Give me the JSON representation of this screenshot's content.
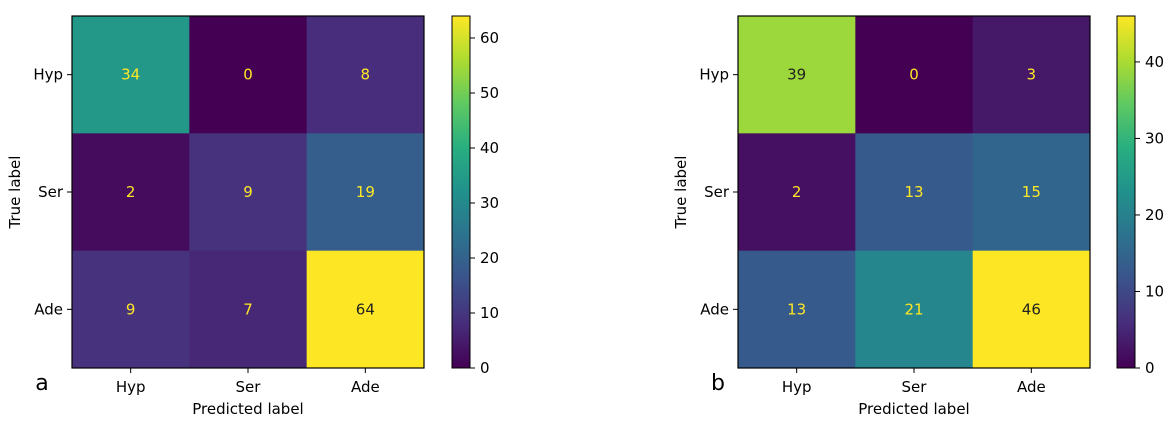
{
  "chart_data": [
    {
      "type": "heatmap",
      "panel_label": "a",
      "xlabel": "Predicted label",
      "ylabel": "True label",
      "x_categories": [
        "Hyp",
        "Ser",
        "Ade"
      ],
      "y_categories": [
        "Hyp",
        "Ser",
        "Ade"
      ],
      "values": [
        [
          34,
          0,
          8
        ],
        [
          2,
          9,
          19
        ],
        [
          9,
          7,
          64
        ]
      ],
      "colorbar": {
        "min": 0,
        "max": 64,
        "ticks": [
          0,
          10,
          20,
          30,
          40,
          50,
          60
        ]
      },
      "colormap": "viridis"
    },
    {
      "type": "heatmap",
      "panel_label": "b",
      "xlabel": "Predicted label",
      "ylabel": "True label",
      "x_categories": [
        "Hyp",
        "Ser",
        "Ade"
      ],
      "y_categories": [
        "Hyp",
        "Ser",
        "Ade"
      ],
      "values": [
        [
          39,
          0,
          3
        ],
        [
          2,
          13,
          15
        ],
        [
          13,
          21,
          46
        ]
      ],
      "colorbar": {
        "min": 0,
        "max": 46,
        "ticks": [
          0,
          10,
          20,
          30,
          40
        ]
      },
      "colormap": "viridis"
    }
  ]
}
